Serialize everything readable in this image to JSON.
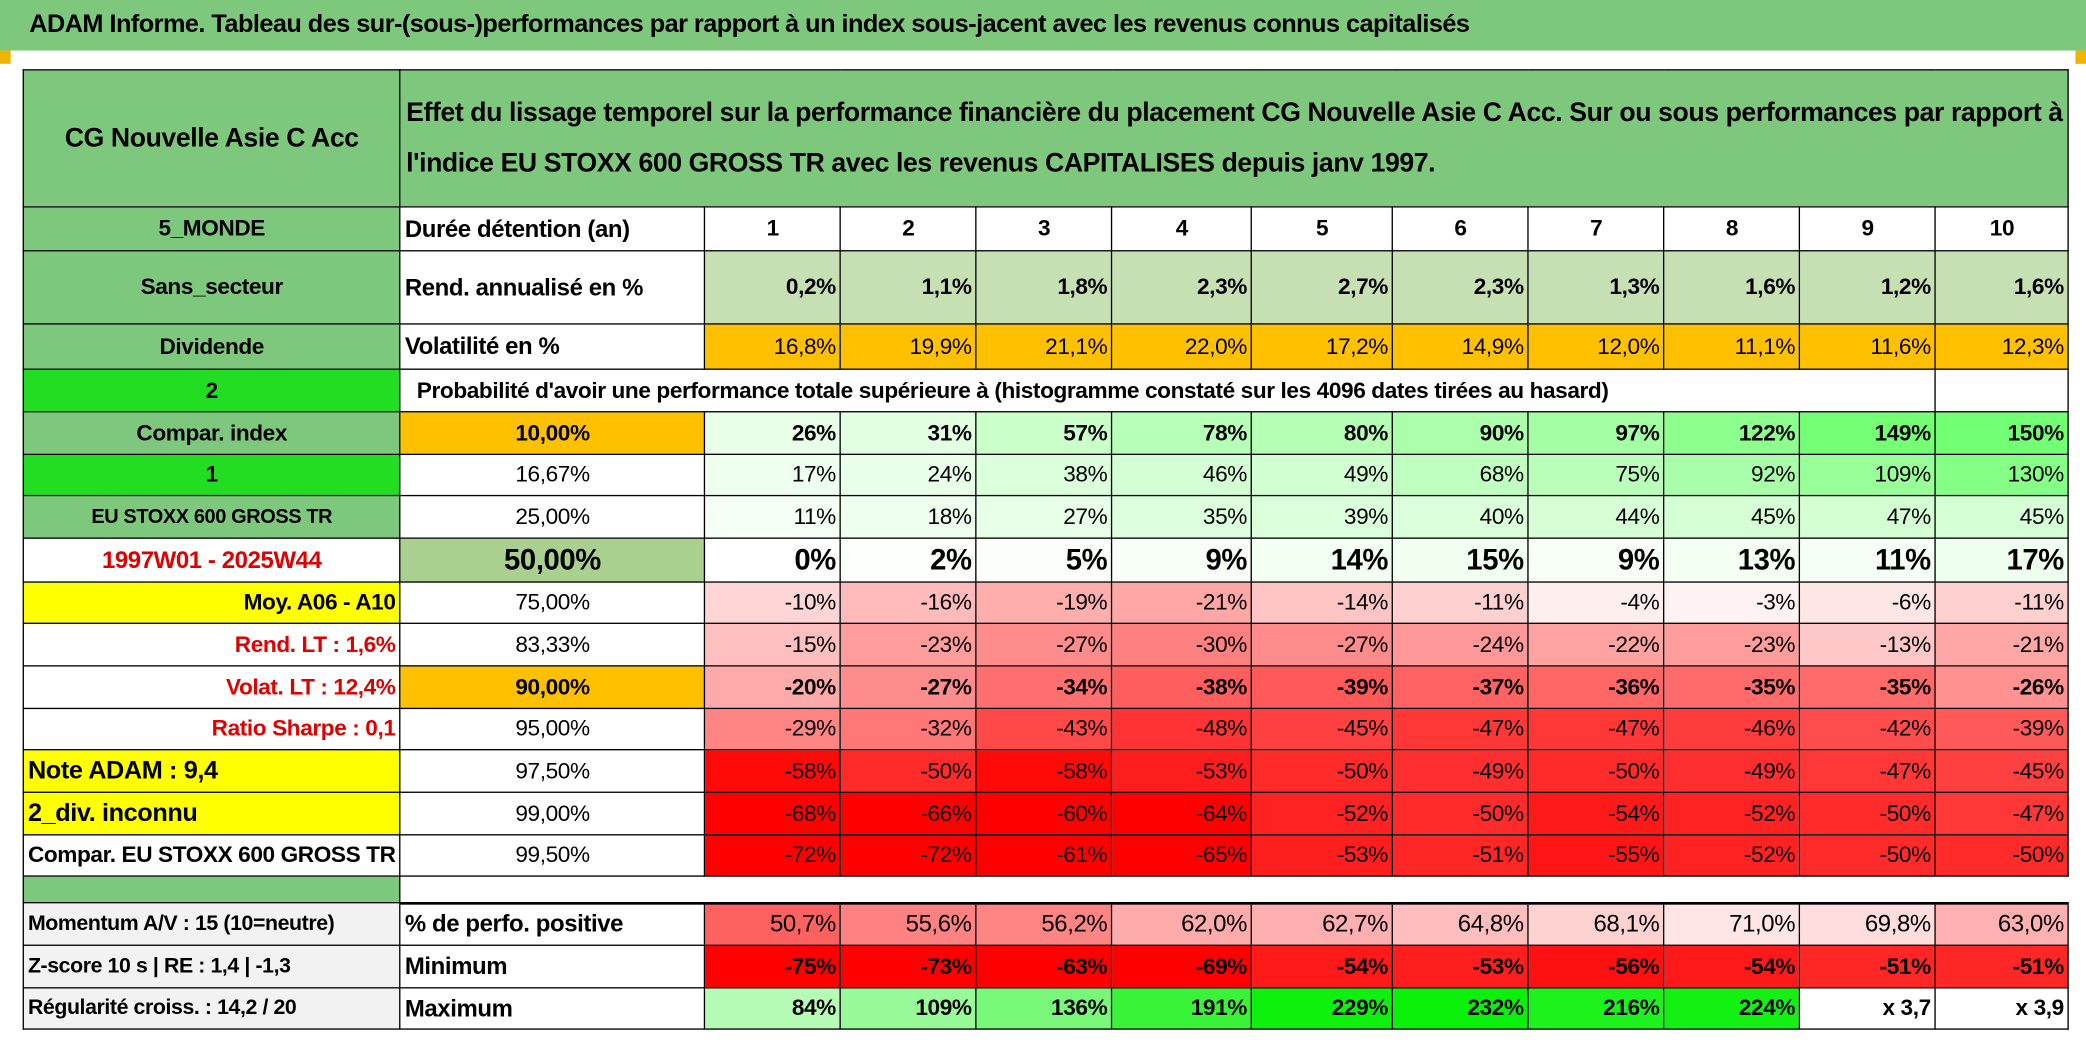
{
  "title": "ADAM Informe. Tableau des sur-(sous-)performances par rapport à un index sous-jacent avec les revenus connus capitalisés",
  "header": {
    "fund": "CG Nouvelle Asie C Acc",
    "description": "Effet du lissage temporel sur la performance financière du placement CG Nouvelle Asie C Acc. Sur ou sous performances par rapport à l'indice EU STOXX 600 GROSS TR avec les revenus CAPITALISES depuis janv 1997."
  },
  "table": {
    "rows": [
      [
        "5_MONDE",
        "Durée détention (an)",
        "1",
        "2",
        "3",
        "4",
        "5",
        "6",
        "7",
        "8",
        "9",
        "10"
      ],
      [
        "Sans_secteur",
        "Rend. annualisé en %",
        "0,2%",
        "1,1%",
        "1,8%",
        "2,3%",
        "2,7%",
        "2,3%",
        "1,3%",
        "1,6%",
        "1,2%",
        "1,6%"
      ],
      [
        "Dividende",
        "Volatilité en %",
        "16,8%",
        "19,9%",
        "21,1%",
        "22,0%",
        "17,2%",
        "14,9%",
        "12,0%",
        "11,1%",
        "11,6%",
        "12,3%"
      ],
      [
        "2",
        "Probabilité d'avoir une performance totale supérieure à (histogramme constaté sur les 4096 dates tirées au hasard)"
      ],
      [
        "Compar. index",
        "10,00%",
        "26%",
        "31%",
        "57%",
        "78%",
        "80%",
        "90%",
        "97%",
        "122%",
        "149%",
        "150%"
      ],
      [
        "1",
        "16,67%",
        "17%",
        "24%",
        "38%",
        "46%",
        "49%",
        "68%",
        "75%",
        "92%",
        "109%",
        "130%"
      ],
      [
        "EU STOXX 600 GROSS TR",
        "25,00%",
        "11%",
        "18%",
        "27%",
        "35%",
        "39%",
        "40%",
        "44%",
        "45%",
        "47%",
        "45%"
      ],
      [
        "1997W01 - 2025W44",
        "50,00%",
        "0%",
        "2%",
        "5%",
        "9%",
        "14%",
        "15%",
        "9%",
        "13%",
        "11%",
        "17%"
      ],
      [
        "Moy. A06 - A10",
        "75,00%",
        "-10%",
        "-16%",
        "-19%",
        "-21%",
        "-14%",
        "-11%",
        "-4%",
        "-3%",
        "-6%",
        "-11%"
      ],
      [
        "Rend. LT :   1,6%",
        "83,33%",
        "-15%",
        "-23%",
        "-27%",
        "-30%",
        "-27%",
        "-24%",
        "-22%",
        "-23%",
        "-13%",
        "-21%"
      ],
      [
        "Volat. LT :   12,4%",
        "90,00%",
        "-20%",
        "-27%",
        "-34%",
        "-38%",
        "-39%",
        "-37%",
        "-36%",
        "-35%",
        "-35%",
        "-26%"
      ],
      [
        "Ratio Sharpe :    0,1",
        "95,00%",
        "-29%",
        "-32%",
        "-43%",
        "-48%",
        "-45%",
        "-47%",
        "-47%",
        "-46%",
        "-42%",
        "-39%"
      ],
      [
        "Note ADAM : 9,4",
        "97,50%",
        "-58%",
        "-50%",
        "-58%",
        "-53%",
        "-50%",
        "-49%",
        "-50%",
        "-49%",
        "-47%",
        "-45%"
      ],
      [
        "2_div. inconnu",
        "99,00%",
        "-68%",
        "-66%",
        "-60%",
        "-64%",
        "-52%",
        "-50%",
        "-54%",
        "-52%",
        "-50%",
        "-47%"
      ],
      [
        "Compar. EU STOXX 600 GROSS TR",
        "99,50%",
        "-72%",
        "-72%",
        "-61%",
        "-65%",
        "-53%",
        "-51%",
        "-55%",
        "-52%",
        "-50%",
        "-50%"
      ],
      [],
      [
        "Momentum A/V : 15 (10=neutre)",
        "% de perfo. positive",
        "50,7%",
        "55,6%",
        "56,2%",
        "62,0%",
        "62,7%",
        "64,8%",
        "68,1%",
        "71,0%",
        "69,8%",
        "63,0%"
      ],
      [
        "Z-score 10 s | RE : 1,4 | -1,3",
        "Minimum",
        "-75%",
        "-73%",
        "-63%",
        "-69%",
        "-54%",
        "-53%",
        "-56%",
        "-54%",
        "-51%",
        "-51%"
      ],
      [
        "Régularité croiss. : 14,2 / 20",
        "Maximum",
        "84%",
        "109%",
        "136%",
        "191%",
        "229%",
        "232%",
        "216%",
        "224%",
        "x 3,7",
        "x 3,9"
      ]
    ]
  }
}
